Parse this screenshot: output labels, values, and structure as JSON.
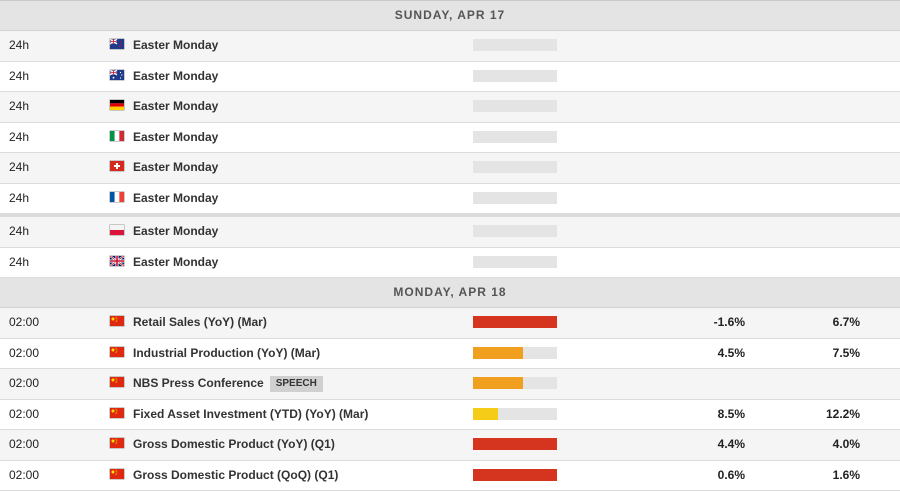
{
  "days": [
    {
      "header": "SUNDAY, APR 17",
      "rows": [
        {
          "time": "24h",
          "flag": "new-zealand-flag",
          "event": "Easter Monday",
          "impact": 0
        },
        {
          "time": "24h",
          "flag": "australia-flag",
          "event": "Easter Monday",
          "impact": 0
        },
        {
          "time": "24h",
          "flag": "germany-flag",
          "event": "Easter Monday",
          "impact": 0
        },
        {
          "time": "24h",
          "flag": "italy-flag",
          "event": "Easter Monday",
          "impact": 0
        },
        {
          "time": "24h",
          "flag": "switzerland-flag",
          "event": "Easter Monday",
          "impact": 0
        },
        {
          "time": "24h",
          "flag": "france-flag",
          "event": "Easter Monday",
          "impact": 0
        },
        {
          "time": "24h",
          "flag": "poland-flag",
          "event": "Easter Monday",
          "impact": 0
        },
        {
          "time": "24h",
          "flag": "united-kingdom-flag",
          "event": "Easter Monday",
          "impact": 0
        }
      ]
    },
    {
      "header": "MONDAY, APR 18",
      "rows": [
        {
          "time": "02:00",
          "flag": "china-flag",
          "event": "Retail Sales (YoY) (Mar)",
          "impact": 1.0,
          "impact_color": "#d5351f",
          "actual": "-1.6%",
          "forecast": "6.7%"
        },
        {
          "time": "02:00",
          "flag": "china-flag",
          "event": "Industrial Production (YoY) (Mar)",
          "impact": 0.6,
          "impact_color": "#f0a01e",
          "actual": "4.5%",
          "forecast": "7.5%"
        },
        {
          "time": "02:00",
          "flag": "china-flag",
          "event": "NBS Press Conference",
          "tag": "SPEECH",
          "impact": 0.6,
          "impact_color": "#f0a01e"
        },
        {
          "time": "02:00",
          "flag": "china-flag",
          "event": "Fixed Asset Investment (YTD) (YoY) (Mar)",
          "impact": 0.3,
          "impact_color": "#f5cc18",
          "actual": "8.5%",
          "forecast": "12.2%"
        },
        {
          "time": "02:00",
          "flag": "china-flag",
          "event": "Gross Domestic Product (YoY) (Q1)",
          "impact": 1.0,
          "impact_color": "#d5351f",
          "actual": "4.4%",
          "forecast": "4.0%"
        },
        {
          "time": "02:00",
          "flag": "china-flag",
          "event": "Gross Domestic Product (QoQ) (Q1)",
          "impact": 1.0,
          "impact_color": "#d5351f",
          "actual": "0.6%",
          "forecast": "1.6%"
        }
      ]
    }
  ]
}
